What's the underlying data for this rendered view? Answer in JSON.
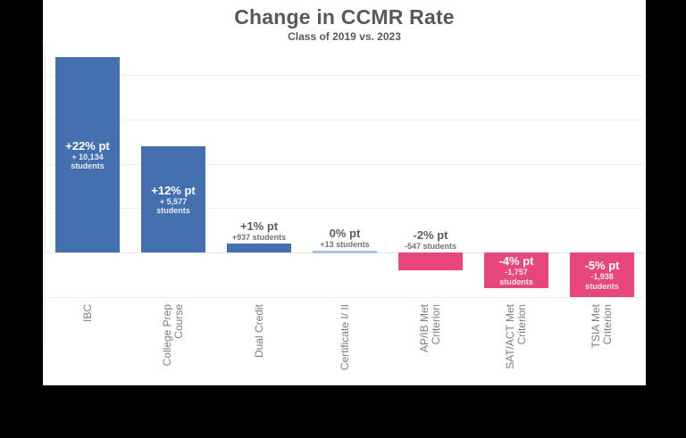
{
  "header": {
    "title": "Change in CCMR Rate",
    "subtitle": "Class of 2019 vs. 2023"
  },
  "colors": {
    "background": "#000000",
    "panel": "#ffffff",
    "positive_bar": "#4470b0",
    "negative_bar": "#e7477d",
    "zero_bar": "#a9c4e4",
    "title_text": "#58595b",
    "value_label_text": "#5b5c5e",
    "students_label_text": "#707174",
    "axis_label_text": "#7d7e81",
    "gridline": "#f0f0f1",
    "zero_gridline": "#e6e6e8",
    "axis_line": "#eeeef0"
  },
  "chart_data": {
    "type": "bar",
    "title": "Change in CCMR Rate",
    "subtitle": "Class of 2019 vs. 2023",
    "xlabel": "",
    "ylabel": "",
    "unit": "percentage points",
    "ylim": [
      -7,
      23.5
    ],
    "gridline_values": [
      20,
      15,
      10,
      5,
      0,
      -5
    ],
    "grid": true,
    "legend": "none",
    "categories": [
      "IBC",
      "College Prep Course",
      "Dual Credit",
      "Certificate I/ II",
      "AP/IB Met Criterion",
      "SAT/ACT Met Criterion",
      "TSIA Met Criterion"
    ],
    "values": [
      22,
      12,
      1,
      0,
      -2,
      -4,
      -5
    ],
    "bars": [
      {
        "category_lines": [
          "IBC"
        ],
        "value": 22,
        "value_label": "+22% pt",
        "students_lines": [
          "+ 10,134",
          "students"
        ],
        "students": 10134,
        "label_placement": "inside",
        "bar_color": "#4470b0"
      },
      {
        "category_lines": [
          "College Prep",
          "Course"
        ],
        "value": 12,
        "value_label": "+12% pt",
        "students_lines": [
          "+ 5,577",
          "students"
        ],
        "students": 5577,
        "label_placement": "inside",
        "bar_color": "#4470b0"
      },
      {
        "category_lines": [
          "Dual Credit"
        ],
        "value": 1,
        "value_label": "+1% pt",
        "students_lines": [
          "+937 students"
        ],
        "students": 937,
        "label_placement": "above",
        "bar_color": "#4470b0"
      },
      {
        "category_lines": [
          "Certificate I/ II"
        ],
        "value": 0,
        "value_label": "0% pt",
        "students_lines": [
          "+13 students"
        ],
        "students": 13,
        "label_placement": "above",
        "bar_color": "#a9c4e4"
      },
      {
        "category_lines": [
          "AP/IB Met",
          "Criterion"
        ],
        "value": -2,
        "value_label": "-2% pt",
        "students_lines": [
          "-547 students"
        ],
        "students": -547,
        "label_placement": "above",
        "bar_color": "#e7477d"
      },
      {
        "category_lines": [
          "SAT/ACT Met",
          "Criterion"
        ],
        "value": -4,
        "value_label": "-4% pt",
        "students_lines": [
          "-1,757",
          "students"
        ],
        "students": -1757,
        "label_placement": "inside",
        "bar_color": "#e7477d"
      },
      {
        "category_lines": [
          "TSIA Met",
          "Criterion"
        ],
        "value": -5,
        "value_label": "-5% pt",
        "students_lines": [
          "-1,938",
          "students"
        ],
        "students": -1938,
        "label_placement": "inside",
        "bar_color": "#e7477d"
      }
    ]
  }
}
